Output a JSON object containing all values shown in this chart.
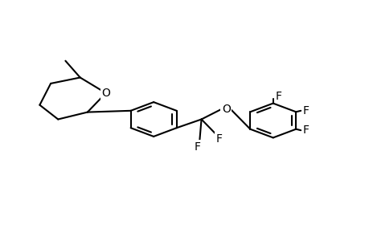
{
  "background_color": "#ffffff",
  "line_color": "#000000",
  "line_width": 1.5,
  "font_size": 9,
  "fig_width": 4.6,
  "fig_height": 3.0,
  "labels": {
    "O1": [
      0.285,
      0.615,
      "O"
    ],
    "O2": [
      0.565,
      0.535,
      "O"
    ],
    "F1": [
      0.595,
      0.36,
      "F"
    ],
    "F2": [
      0.565,
      0.43,
      "F"
    ],
    "F3": [
      0.77,
      0.27,
      "F"
    ],
    "F4": [
      0.82,
      0.46,
      "F"
    ],
    "F5": [
      0.82,
      0.64,
      "F"
    ],
    "Me": [
      0.17,
      0.67,
      ""
    ]
  }
}
